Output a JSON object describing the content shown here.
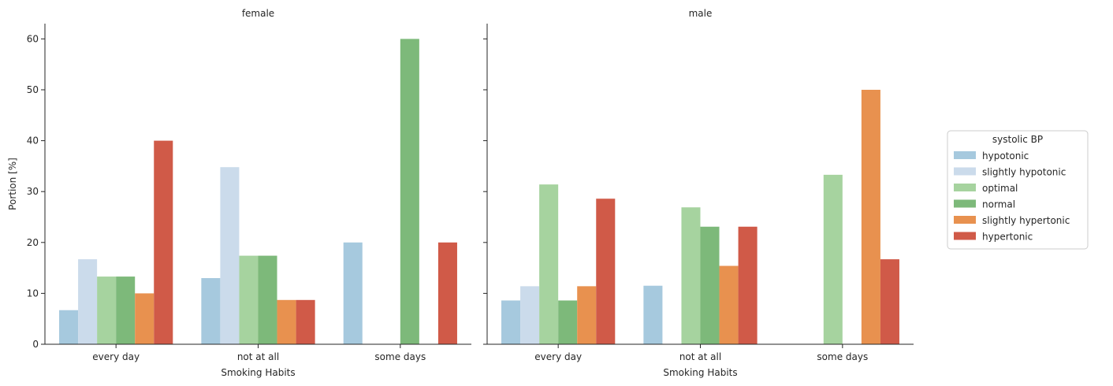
{
  "chart_data": {
    "type": "bar",
    "facets": [
      {
        "title": "female",
        "categories": [
          "every day",
          "not at all",
          "some days"
        ],
        "series": [
          {
            "name": "hypotonic",
            "values": [
              6.7,
              13.0,
              20.0
            ]
          },
          {
            "name": "slightly hypotonic",
            "values": [
              16.7,
              34.8,
              0
            ]
          },
          {
            "name": "optimal",
            "values": [
              13.3,
              17.4,
              0
            ]
          },
          {
            "name": "normal",
            "values": [
              13.3,
              17.4,
              60.0
            ]
          },
          {
            "name": "slightly hypertonic",
            "values": [
              10.0,
              8.7,
              0
            ]
          },
          {
            "name": "hypertonic",
            "values": [
              40.0,
              8.7,
              20.0
            ]
          }
        ]
      },
      {
        "title": "male",
        "categories": [
          "every day",
          "not at all",
          "some days"
        ],
        "series": [
          {
            "name": "hypotonic",
            "values": [
              8.6,
              11.5,
              0
            ]
          },
          {
            "name": "slightly hypotonic",
            "values": [
              11.4,
              0,
              0
            ]
          },
          {
            "name": "optimal",
            "values": [
              31.4,
              26.9,
              33.3
            ]
          },
          {
            "name": "normal",
            "values": [
              8.6,
              23.1,
              0
            ]
          },
          {
            "name": "slightly hypertonic",
            "values": [
              11.4,
              15.4,
              50.0
            ]
          },
          {
            "name": "hypertonic",
            "values": [
              28.6,
              23.1,
              16.7
            ]
          }
        ]
      }
    ],
    "xlabel": "Smoking Habits",
    "ylabel": "Portion [%]",
    "ylim": [
      0,
      63
    ],
    "yticks": [
      0,
      10,
      20,
      30,
      40,
      50,
      60
    ],
    "legend": {
      "title": "systolic BP",
      "placement": "right",
      "entries": [
        "hypotonic",
        "slightly hypotonic",
        "optimal",
        "normal",
        "slightly hypertonic",
        "hypertonic"
      ]
    },
    "colors": [
      "#a6c9de",
      "#cbdbeb",
      "#a6d39f",
      "#7db97a",
      "#e8914f",
      "#d05a48"
    ],
    "grid": false
  }
}
